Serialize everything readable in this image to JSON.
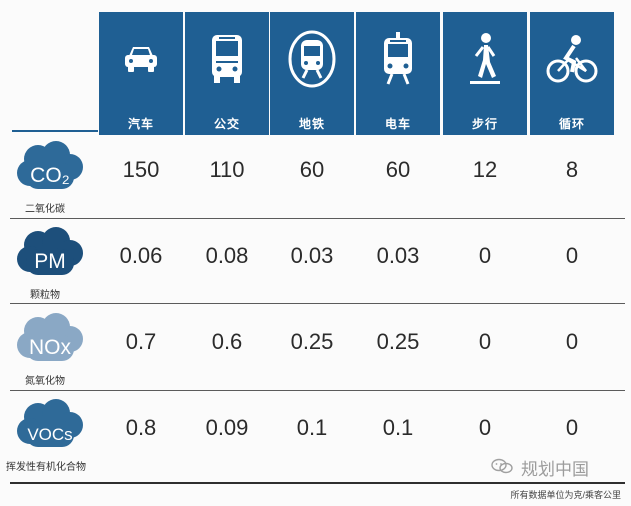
{
  "colors": {
    "header": "#1f5f93",
    "co2_cloud": "#2e6a99",
    "pm_cloud": "#1d4f7b",
    "nox_cloud": "#8aa8c5",
    "voc_cloud": "#2f6a98"
  },
  "modes": [
    {
      "label": "汽车",
      "icon": "car-icon"
    },
    {
      "label": "公交",
      "icon": "bus-icon"
    },
    {
      "label": "地铁",
      "icon": "subway-icon"
    },
    {
      "label": "电车",
      "icon": "tram-icon"
    },
    {
      "label": "步行",
      "icon": "walking-icon"
    },
    {
      "label": "循环",
      "icon": "bicycle-icon"
    }
  ],
  "pollutants": [
    {
      "badge": "CO₂",
      "label": "二氧化碳",
      "values": [
        "150",
        "110",
        "60",
        "60",
        "12",
        "8"
      ]
    },
    {
      "badge": "PM",
      "label": "颗粒物",
      "values": [
        "0.06",
        "0.08",
        "0.03",
        "0.03",
        "0",
        "0"
      ]
    },
    {
      "badge": "NOx",
      "label": "氮氧化物",
      "values": [
        "0.7",
        "0.6",
        "0.25",
        "0.25",
        "0",
        "0"
      ]
    },
    {
      "badge": "VOCs",
      "label": "挥发性有机化合物",
      "values": [
        "0.8",
        "0.09",
        "0.1",
        "0.1",
        "0",
        "0"
      ]
    }
  ],
  "chart_data": {
    "type": "table",
    "columns": [
      "汽车",
      "公交",
      "地铁",
      "电车",
      "步行",
      "循环"
    ],
    "rows": [
      "二氧化碳",
      "颗粒物",
      "氮氧化物",
      "挥发性有机化合物"
    ],
    "values": [
      [
        150,
        110,
        60,
        60,
        12,
        8
      ],
      [
        0.06,
        0.08,
        0.03,
        0.03,
        0,
        0
      ],
      [
        0.7,
        0.6,
        0.25,
        0.25,
        0,
        0
      ],
      [
        0.8,
        0.09,
        0.1,
        0.1,
        0,
        0
      ]
    ]
  },
  "footnote": "所有数据单位为克/乘客公里",
  "watermark": "规划中国"
}
